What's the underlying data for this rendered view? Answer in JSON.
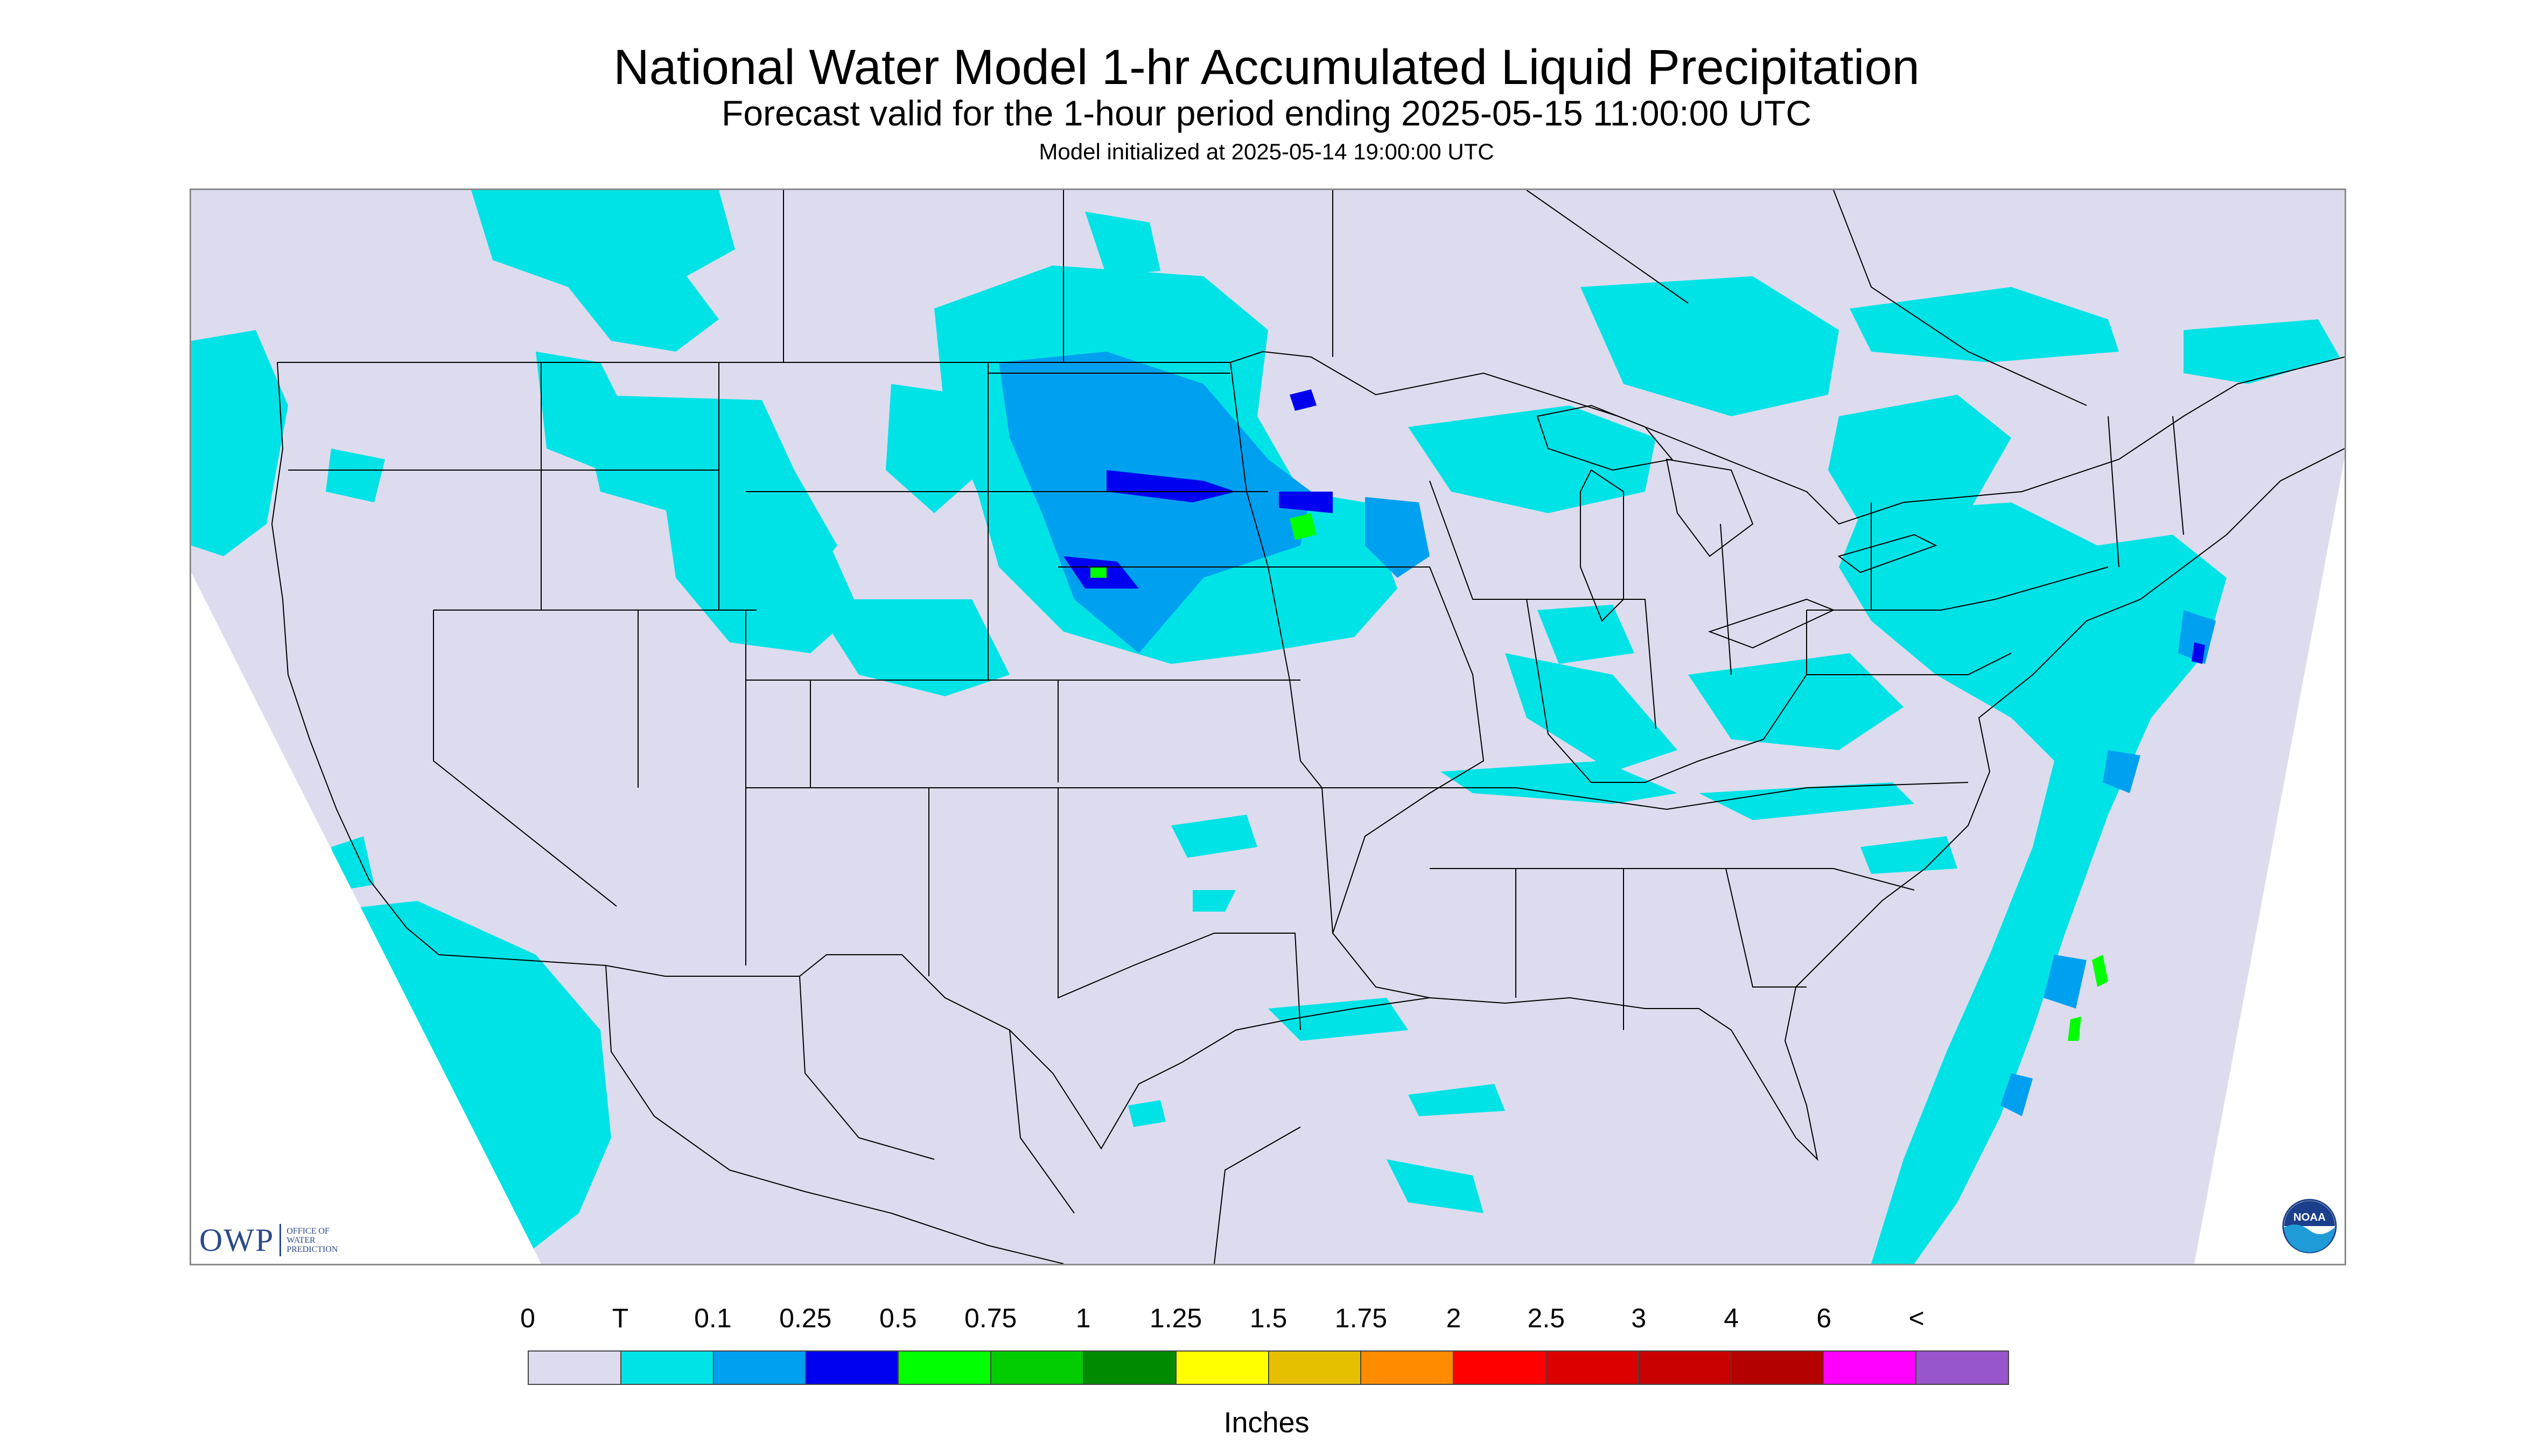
{
  "title": "National Water Model 1-hr Accumulated Liquid Precipitation",
  "subtitle": "Forecast valid for the 1-hour period ending 2025-05-15 11:00:00 UTC",
  "init_line": "Model initialized at 2025-05-14 19:00:00 UTC",
  "colors": {
    "no_precip": "#dcdcee",
    "light": "#00e3e6",
    "outline": "#000000",
    "frame": "#8a8a8a"
  },
  "logos": {
    "owp": {
      "mark": "OWP",
      "sub": "OFFICE OF\nWATER\nPREDICTION",
      "icon": "owp-logo"
    },
    "noaa": {
      "text": "NOAA",
      "icon": "noaa-logo-icon"
    }
  },
  "legend": {
    "labels": [
      "0",
      "T",
      "0.1",
      "0.25",
      "0.5",
      "0.75",
      "1",
      "1.25",
      "1.5",
      "1.75",
      "2",
      "2.5",
      "3",
      "4",
      "6",
      "<"
    ],
    "colors": [
      "#dcdcee",
      "#00e3e6",
      "#00a0f0",
      "#0000f0",
      "#00ff00",
      "#00cc00",
      "#008a00",
      "#ffff00",
      "#e6c000",
      "#ff8c00",
      "#ff0000",
      "#dc0000",
      "#c80000",
      "#b40000",
      "#ff00ff",
      "#9955cc"
    ],
    "units": "Inches"
  }
}
